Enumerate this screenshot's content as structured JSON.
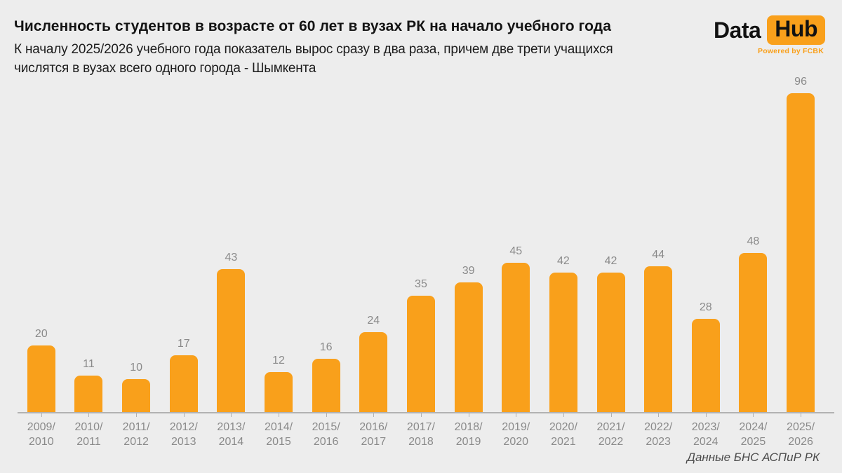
{
  "header": {
    "title": "Численность студентов в возрасте от 60 лет в вузах РК на начало учебного года",
    "subtitle": "К началу 2025/2026 учебного года показатель вырос сразу в два раза, причем две трети учащихся\nчислятся в вузах всего одного города - Шымкента"
  },
  "logo": {
    "part1": "Data",
    "part2": "Hub",
    "powered_by": "Powered by FCBK"
  },
  "footer": {
    "source": "Данные БНС АСПиР РК"
  },
  "colors": {
    "background": "#EDEDED",
    "bar": "#F9A01B",
    "accent": "#F9A01B",
    "value_label": "#8A8A8A",
    "axis": "#B2B2B2",
    "title": "#141414",
    "source": "#4A4A4A"
  },
  "chart_data": {
    "type": "bar",
    "categories": [
      "2009/2010",
      "2010/2011",
      "2011/2012",
      "2012/2013",
      "2013/2014",
      "2014/2015",
      "2015/2016",
      "2016/2017",
      "2017/2018",
      "2018/2019",
      "2019/2020",
      "2020/2021",
      "2021/2022",
      "2022/2023",
      "2023/2024",
      "2024/2025",
      "2025/2026"
    ],
    "values": [
      20,
      11,
      10,
      17,
      43,
      12,
      16,
      24,
      35,
      39,
      45,
      42,
      42,
      44,
      28,
      48,
      96
    ],
    "title": "Численность студентов в возрасте от 60 лет в вузах РК на начало учебного года",
    "xlabel": "",
    "ylabel": "",
    "ylim": [
      0,
      96
    ],
    "grid": false,
    "legend_position": "none",
    "value_labels_shown": true,
    "bar_color": "#F9A01B",
    "source": "Данные БНС АСПиР РК"
  }
}
